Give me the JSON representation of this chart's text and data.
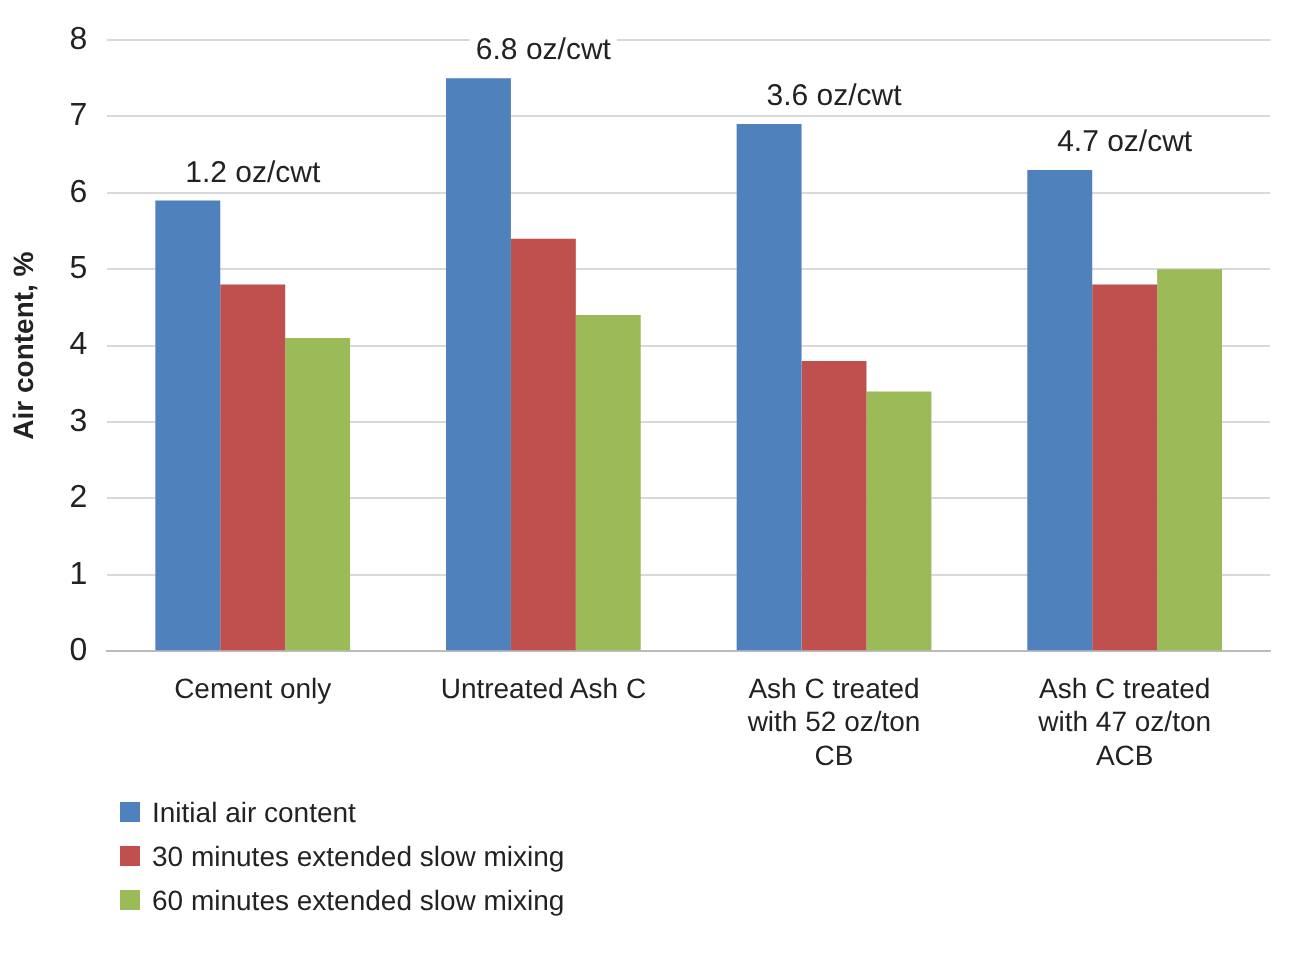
{
  "chart_data": {
    "type": "bar",
    "ylabel": "Air content, %",
    "categories": [
      "Cement only",
      "Untreated Ash C",
      "Ash C treated with 52 oz/ton CB",
      "Ash C treated with 47 oz/ton ACB"
    ],
    "series": [
      {
        "name": "Initial air content",
        "color": "#4f81bd",
        "values": [
          5.9,
          7.5,
          6.9,
          6.3
        ]
      },
      {
        "name": "30 minutes extended slow mixing",
        "color": "#c0504d",
        "values": [
          4.8,
          5.4,
          3.8,
          4.8
        ]
      },
      {
        "name": "60 minutes extended slow mixing",
        "color": "#9bbb59",
        "values": [
          4.1,
          4.4,
          3.4,
          5.0
        ]
      }
    ],
    "ylim": [
      0,
      8
    ],
    "yticks": [
      0,
      1,
      2,
      3,
      4,
      5,
      6,
      7,
      8
    ],
    "grid": "y",
    "legend": "bottom left",
    "annotations": [
      "1.2 oz/cwt",
      "6.8 oz/cwt",
      "3.6 oz/cwt",
      "4.7 oz/cwt"
    ]
  }
}
